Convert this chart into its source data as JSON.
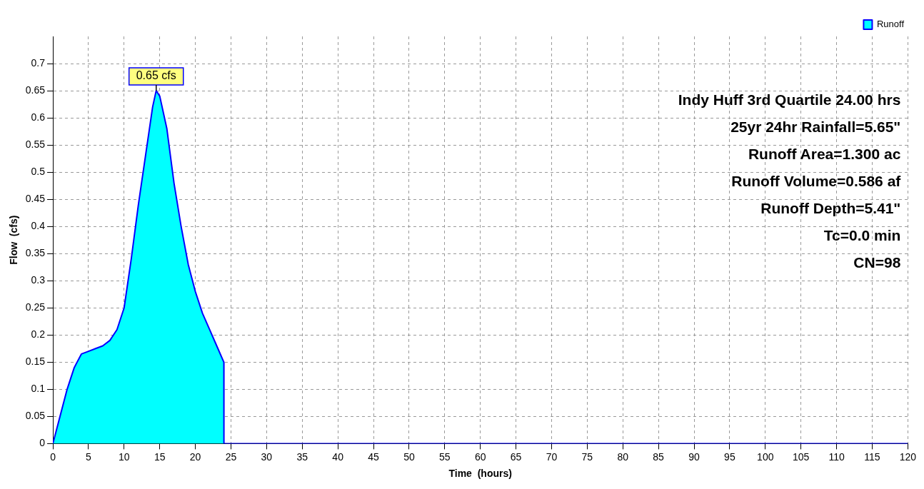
{
  "chart_data": {
    "type": "area",
    "xlabel": "Time  (hours)",
    "ylabel": "Flow  (cfs)",
    "x": [
      0,
      1,
      2,
      3,
      4,
      5,
      6,
      7,
      8,
      9,
      10,
      11,
      12,
      13,
      14,
      14.5,
      15,
      16,
      17,
      18,
      19,
      20,
      21,
      22,
      23,
      24,
      24.01,
      120
    ],
    "series": [
      {
        "name": "Runoff",
        "color": "#00ffff",
        "values": [
          0,
          0.05,
          0.1,
          0.14,
          0.165,
          0.17,
          0.175,
          0.18,
          0.19,
          0.21,
          0.25,
          0.34,
          0.44,
          0.53,
          0.62,
          0.65,
          0.64,
          0.58,
          0.48,
          0.4,
          0.33,
          0.28,
          0.24,
          0.21,
          0.18,
          0.15,
          0,
          0
        ]
      }
    ],
    "xlim": [
      0,
      120
    ],
    "xticks": [
      0,
      5,
      10,
      15,
      20,
      25,
      30,
      35,
      40,
      45,
      50,
      55,
      60,
      65,
      70,
      75,
      80,
      85,
      90,
      95,
      100,
      105,
      110,
      115,
      120
    ],
    "ylim": [
      0,
      0.75
    ],
    "yticks": [
      0,
      0.05,
      0.1,
      0.15,
      0.2,
      0.25,
      0.3,
      0.35,
      0.4,
      0.45,
      0.5,
      0.55,
      0.6,
      0.65,
      0.7
    ],
    "grid": true,
    "legend": "top right",
    "annotations": [
      {
        "text": "0.65 cfs",
        "x": 14.5,
        "y": 0.65
      },
      "Indy Huff 3rd Quartile 24.00 hrs",
      "25yr 24hr Rainfall=5.65\"",
      "Runoff Area=1.300 ac",
      "Runoff Volume=0.586 af",
      "Runoff Depth=5.41\"",
      "Tc=0.0 min",
      "CN=98"
    ]
  }
}
